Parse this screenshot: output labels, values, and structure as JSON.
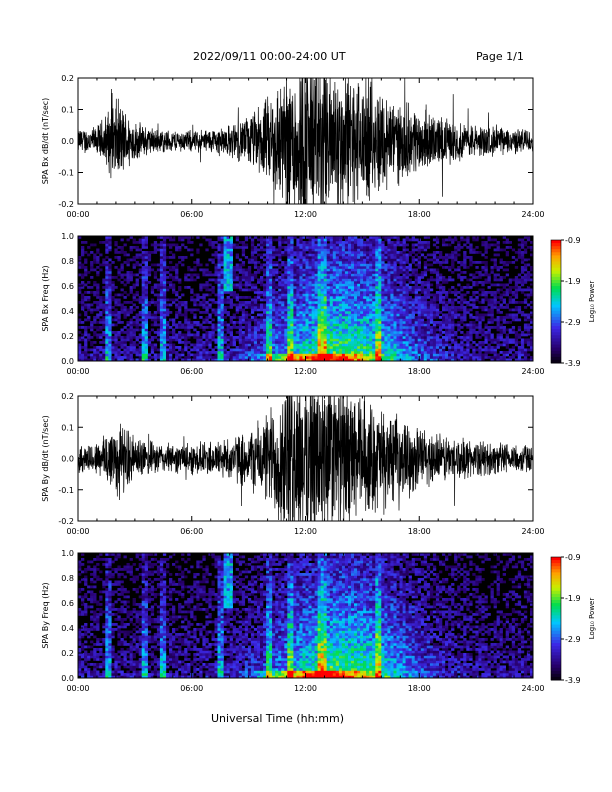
{
  "header": {
    "title": "2022/09/11  00:00-24:00 UT",
    "page": "Page 1/1"
  },
  "footer": {
    "xlabel": "Universal Time (hh:mm)"
  },
  "chart_data": [
    {
      "type": "line",
      "ylabel": "SPA Bx dB/dt (nT/sec)",
      "xlim": [
        0,
        24
      ],
      "ylim": [
        -0.2,
        0.2
      ],
      "xticks": [
        "00:00",
        "06:00",
        "12:00",
        "18:00",
        "24:00"
      ],
      "yticks": [
        "-0.2",
        "-0.1",
        "0.0",
        "0.1",
        "0.2"
      ],
      "x": [
        0,
        1,
        2,
        3,
        4,
        5,
        6,
        7,
        8,
        9,
        10,
        11,
        12,
        13,
        14,
        15,
        16,
        17,
        18,
        19,
        20,
        21,
        22,
        23,
        24
      ],
      "amplitude": [
        0.035,
        0.04,
        0.12,
        0.055,
        0.035,
        0.03,
        0.03,
        0.035,
        0.045,
        0.07,
        0.12,
        0.22,
        0.25,
        0.24,
        0.2,
        0.17,
        0.15,
        0.11,
        0.09,
        0.07,
        0.055,
        0.045,
        0.04,
        0.035,
        0.035
      ]
    },
    {
      "type": "heatmap",
      "ylabel": "SPA Bx Freq (Hz)",
      "colorbar_label": "Log₁₀ Power",
      "colorbar_ticks": [
        "-0.9",
        "-1.9",
        "-2.9",
        "-3.9"
      ],
      "clim": [
        -3.9,
        -0.9
      ],
      "xlim": [
        0,
        24
      ],
      "ylim": [
        0,
        1
      ],
      "xticks": [
        "00:00",
        "06:00",
        "12:00",
        "18:00",
        "24:00"
      ],
      "yticks": [
        "0.0",
        "0.2",
        "0.4",
        "0.6",
        "0.8",
        "1.0"
      ]
    },
    {
      "type": "line",
      "ylabel": "SPA By dB/dt (nT/sec)",
      "xlim": [
        0,
        24
      ],
      "ylim": [
        -0.2,
        0.2
      ],
      "xticks": [
        "00:00",
        "06:00",
        "12:00",
        "18:00",
        "24:00"
      ],
      "yticks": [
        "-0.2",
        "-0.1",
        "0.0",
        "0.1",
        "0.2"
      ],
      "x": [
        0,
        1,
        2,
        3,
        4,
        5,
        6,
        7,
        8,
        9,
        10,
        11,
        12,
        13,
        14,
        15,
        16,
        17,
        18,
        19,
        20,
        21,
        22,
        23,
        24
      ],
      "amplitude": [
        0.04,
        0.045,
        0.12,
        0.06,
        0.045,
        0.04,
        0.045,
        0.05,
        0.06,
        0.08,
        0.13,
        0.24,
        0.26,
        0.25,
        0.2,
        0.17,
        0.14,
        0.11,
        0.09,
        0.07,
        0.06,
        0.05,
        0.045,
        0.04,
        0.04
      ]
    },
    {
      "type": "heatmap",
      "ylabel": "SPA By Freq (Hz)",
      "colorbar_label": "Log₁₀ Power",
      "colorbar_ticks": [
        "-0.9",
        "-1.9",
        "-2.9",
        "-3.9"
      ],
      "clim": [
        -3.9,
        -0.9
      ],
      "xlim": [
        0,
        24
      ],
      "ylim": [
        0,
        1
      ],
      "xticks": [
        "00:00",
        "06:00",
        "12:00",
        "18:00",
        "24:00"
      ],
      "yticks": [
        "0.0",
        "0.2",
        "0.4",
        "0.6",
        "0.8",
        "1.0"
      ]
    }
  ]
}
